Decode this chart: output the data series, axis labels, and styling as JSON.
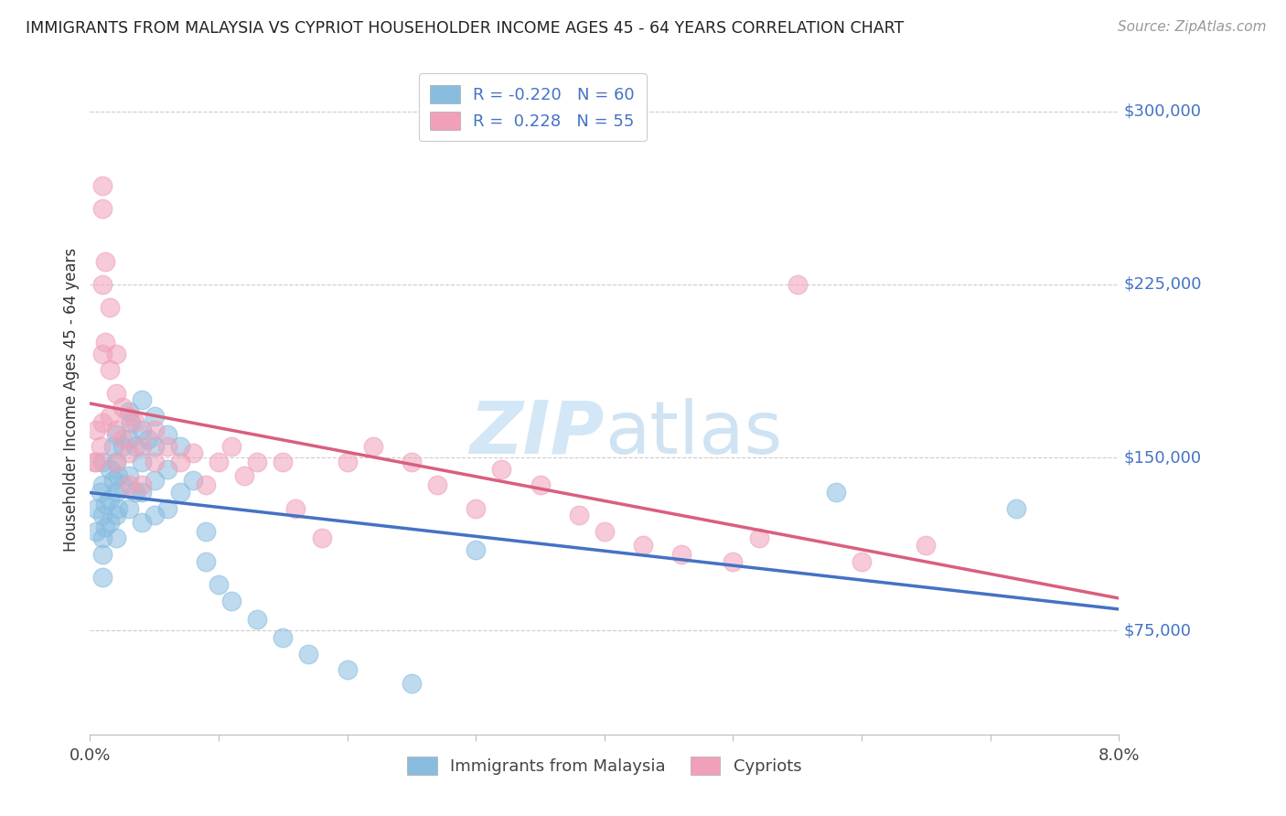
{
  "title": "IMMIGRANTS FROM MALAYSIA VS CYPRIOT HOUSEHOLDER INCOME AGES 45 - 64 YEARS CORRELATION CHART",
  "source": "Source: ZipAtlas.com",
  "ylabel": "Householder Income Ages 45 - 64 years",
  "xlim": [
    0.0,
    0.08
  ],
  "ylim": [
    30000,
    320000
  ],
  "yticks": [
    75000,
    150000,
    225000,
    300000
  ],
  "ytick_labels": [
    "$75,000",
    "$150,000",
    "$225,000",
    "$300,000"
  ],
  "color_blue": "#89bde0",
  "color_pink": "#f0a0b8",
  "color_blue_line": "#4472c4",
  "color_pink_line": "#d95f7f",
  "color_pink_dashed": "#e8b0c0",
  "color_blue_dashed": "#b0cce8",
  "watermark_color": "#d0e5f5",
  "blue_scatter_x": [
    0.0005,
    0.0005,
    0.0008,
    0.001,
    0.001,
    0.001,
    0.001,
    0.001,
    0.001,
    0.0012,
    0.0012,
    0.0015,
    0.0015,
    0.0015,
    0.0018,
    0.0018,
    0.002,
    0.002,
    0.002,
    0.002,
    0.002,
    0.0022,
    0.0022,
    0.0025,
    0.0025,
    0.003,
    0.003,
    0.003,
    0.003,
    0.0032,
    0.0035,
    0.0035,
    0.004,
    0.004,
    0.004,
    0.004,
    0.004,
    0.0045,
    0.005,
    0.005,
    0.005,
    0.005,
    0.006,
    0.006,
    0.006,
    0.007,
    0.007,
    0.008,
    0.009,
    0.009,
    0.01,
    0.011,
    0.013,
    0.015,
    0.017,
    0.02,
    0.025,
    0.03,
    0.058,
    0.072
  ],
  "blue_scatter_y": [
    128000,
    118000,
    135000,
    148000,
    138000,
    125000,
    115000,
    108000,
    98000,
    130000,
    120000,
    145000,
    132000,
    122000,
    155000,
    140000,
    160000,
    148000,
    135000,
    125000,
    115000,
    142000,
    128000,
    155000,
    138000,
    170000,
    158000,
    142000,
    128000,
    165000,
    155000,
    135000,
    175000,
    162000,
    148000,
    135000,
    122000,
    158000,
    168000,
    155000,
    140000,
    125000,
    160000,
    145000,
    128000,
    155000,
    135000,
    140000,
    118000,
    105000,
    95000,
    88000,
    80000,
    72000,
    65000,
    58000,
    52000,
    110000,
    135000,
    128000
  ],
  "pink_scatter_x": [
    0.0003,
    0.0005,
    0.0005,
    0.0008,
    0.001,
    0.001,
    0.001,
    0.001,
    0.001,
    0.0012,
    0.0012,
    0.0015,
    0.0015,
    0.0015,
    0.002,
    0.002,
    0.002,
    0.002,
    0.0025,
    0.0025,
    0.003,
    0.003,
    0.003,
    0.0035,
    0.004,
    0.004,
    0.005,
    0.005,
    0.006,
    0.007,
    0.008,
    0.009,
    0.01,
    0.011,
    0.012,
    0.013,
    0.015,
    0.016,
    0.018,
    0.02,
    0.022,
    0.025,
    0.027,
    0.03,
    0.032,
    0.035,
    0.038,
    0.04,
    0.043,
    0.046,
    0.05,
    0.052,
    0.055,
    0.06,
    0.065
  ],
  "pink_scatter_y": [
    148000,
    162000,
    148000,
    155000,
    258000,
    268000,
    225000,
    195000,
    165000,
    235000,
    200000,
    215000,
    188000,
    168000,
    195000,
    178000,
    162000,
    148000,
    172000,
    158000,
    168000,
    152000,
    138000,
    165000,
    155000,
    138000,
    162000,
    148000,
    155000,
    148000,
    152000,
    138000,
    148000,
    155000,
    142000,
    148000,
    148000,
    128000,
    115000,
    148000,
    155000,
    148000,
    138000,
    128000,
    145000,
    138000,
    125000,
    118000,
    112000,
    108000,
    105000,
    115000,
    225000,
    105000,
    112000
  ]
}
